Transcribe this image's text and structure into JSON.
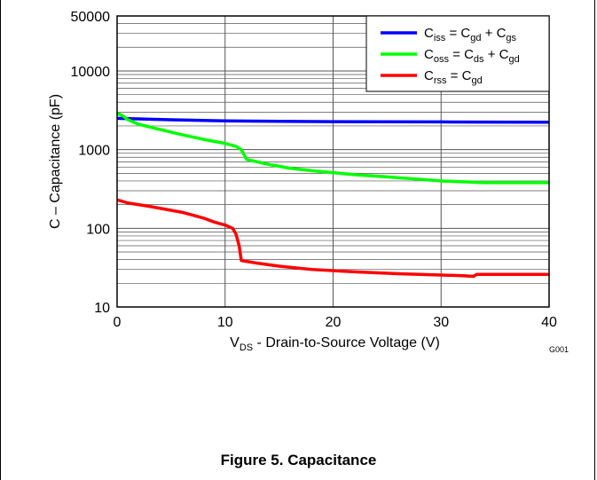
{
  "figure_caption": "Figure 5. Capacitance",
  "figure_id": "G001",
  "colors": {
    "ciss": "#0000ff",
    "coss": "#00ff00",
    "crss": "#ff0000",
    "grid": "#555555",
    "axis": "#000000"
  },
  "chart_data": {
    "type": "line",
    "title": "",
    "xlabel": {
      "main": "V",
      "sub": "DS",
      "rest": " - Drain-to-Source Voltage (V)"
    },
    "ylabel": "C – Capacitance  (pF)",
    "xlim": [
      0,
      40
    ],
    "ylim": [
      10,
      50000
    ],
    "yscale": "log",
    "x_ticks": [
      0,
      10,
      20,
      30,
      40
    ],
    "x_tick_labels": [
      "0",
      "10",
      "20",
      "30",
      "40"
    ],
    "y_ticks": [
      10,
      100,
      1000,
      10000,
      50000
    ],
    "y_tick_labels": [
      "10",
      "100",
      "1000",
      "10000",
      "50000"
    ],
    "grid": true,
    "legend_position": "top-right",
    "series": [
      {
        "key": "ciss",
        "legend": {
          "a": "C",
          "a_sub": "iss",
          "b": " = C",
          "b_sub": "gd",
          "c": " + C",
          "c_sub": "gs"
        },
        "x": [
          0,
          5,
          10,
          15,
          20,
          25,
          30,
          35,
          40
        ],
        "values": [
          2500,
          2400,
          2320,
          2290,
          2270,
          2260,
          2250,
          2240,
          2230
        ]
      },
      {
        "key": "coss",
        "legend": {
          "a": "C",
          "a_sub": "oss",
          "b": " = C",
          "b_sub": "ds",
          "c": " + C",
          "c_sub": "gd"
        },
        "x": [
          0,
          0.5,
          1,
          2,
          4,
          6,
          8,
          10,
          11,
          11.5,
          12,
          14,
          16,
          18,
          20,
          22,
          25,
          28,
          30,
          32,
          34,
          36,
          38,
          40
        ],
        "values": [
          2900,
          2700,
          2400,
          2100,
          1800,
          1550,
          1350,
          1200,
          1100,
          1000,
          750,
          650,
          580,
          540,
          510,
          480,
          450,
          420,
          400,
          390,
          380,
          380,
          380,
          380
        ]
      },
      {
        "key": "crss",
        "legend": {
          "a": "C",
          "a_sub": "rss",
          "b": " =  C",
          "b_sub": "gd",
          "c": "",
          "c_sub": ""
        },
        "x": [
          0,
          1,
          3,
          6,
          8,
          9,
          10,
          10.7,
          11,
          11.3,
          11.5,
          13,
          15,
          18,
          22,
          26,
          30,
          32,
          33,
          33.3,
          34,
          36,
          40
        ],
        "values": [
          230,
          210,
          190,
          160,
          135,
          120,
          110,
          100,
          85,
          60,
          39,
          36,
          33,
          30,
          28,
          26.5,
          25.5,
          25,
          24.5,
          26,
          26,
          26,
          26
        ]
      }
    ]
  }
}
